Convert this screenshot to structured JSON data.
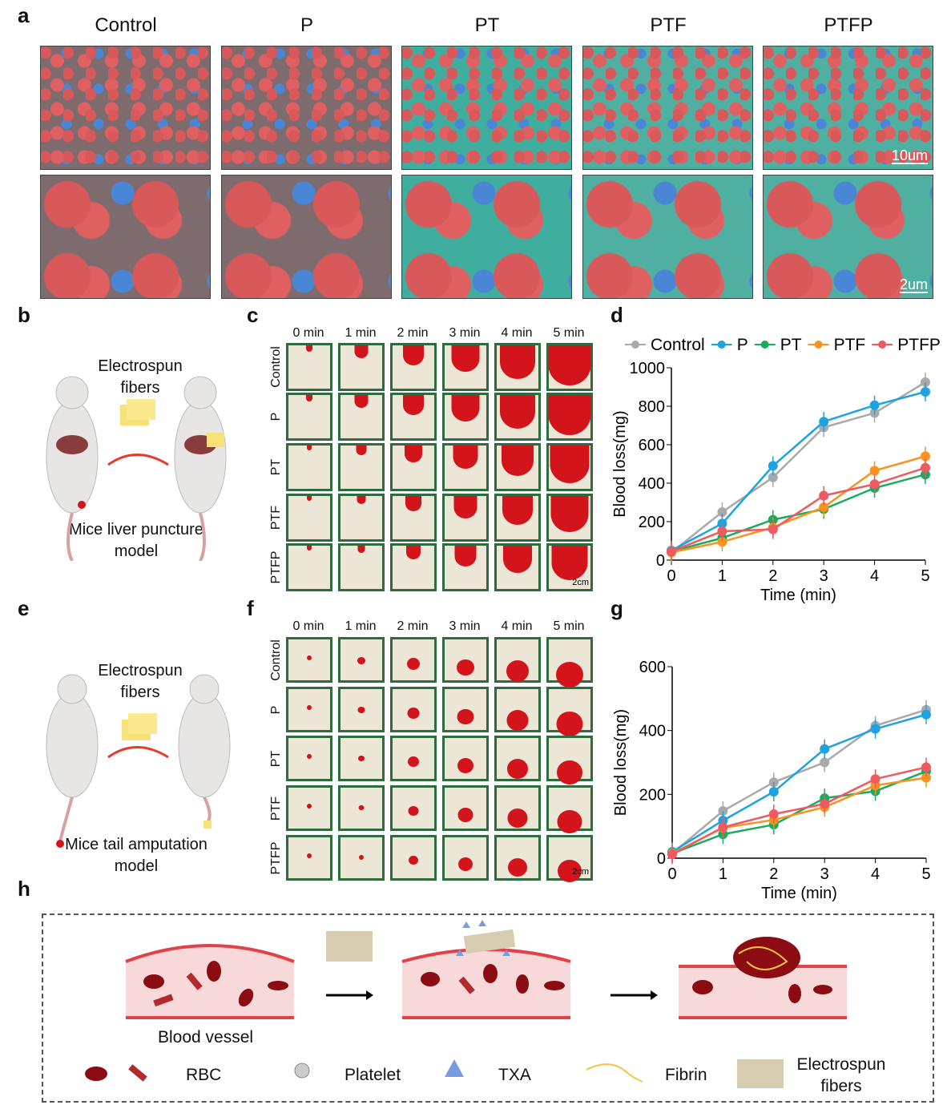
{
  "panel_labels": {
    "a": "a",
    "b": "b",
    "c": "c",
    "d": "d",
    "e": "e",
    "f": "f",
    "g": "g",
    "h": "h"
  },
  "panel_a": {
    "groups": [
      "Control",
      "P",
      "PT",
      "PTF",
      "PTFP"
    ],
    "scale_top": "10um",
    "scale_bottom": "2um"
  },
  "panel_b": {
    "fibers_label": "Electrospun fibers",
    "model_label": "Mice liver puncture model"
  },
  "panel_e": {
    "fibers_label": "Electrospun fibers",
    "model_label": "Mice tail amputation model"
  },
  "panel_c": {
    "times": [
      "0 min",
      "1 min",
      "2 min",
      "3 min",
      "4 min",
      "5 min"
    ],
    "rows": [
      "Control",
      "P",
      "PT",
      "PTF",
      "PTFP"
    ],
    "scale": "2cm"
  },
  "panel_f": {
    "times": [
      "0 min",
      "1 min",
      "2 min",
      "3 min",
      "4 min",
      "5 min"
    ],
    "rows": [
      "Control",
      "P",
      "PT",
      "PTF",
      "PTFP"
    ],
    "scale": "2cm"
  },
  "panel_h": {
    "vessel_label": "Blood vessel",
    "legend": {
      "rbc": "RBC",
      "platelet": "Platelet",
      "txa": "TXA",
      "fibrin": "Fibrin",
      "fibers": "Electrospun fibers"
    }
  },
  "chart_data": [
    {
      "type": "line",
      "panel": "d",
      "xlabel": "Time (min)",
      "ylabel": "Blood loss(mg)",
      "xlim": [
        0,
        5
      ],
      "ylim": [
        0,
        1000
      ],
      "xticks": [
        0,
        1,
        2,
        3,
        4,
        5
      ],
      "yticks": [
        0,
        200,
        400,
        600,
        800,
        1000
      ],
      "legend": "top",
      "x": [
        0,
        1,
        2,
        3,
        4,
        5
      ],
      "series": [
        {
          "name": "Control",
          "color": "#a9a9a9",
          "values": [
            40,
            250,
            430,
            690,
            765,
            925
          ]
        },
        {
          "name": "P",
          "color": "#1fa2e0",
          "values": [
            50,
            190,
            490,
            720,
            805,
            875
          ]
        },
        {
          "name": "PT",
          "color": "#1aab5f",
          "values": [
            45,
            115,
            210,
            265,
            375,
            445
          ]
        },
        {
          "name": "PTF",
          "color": "#f7931e",
          "values": [
            40,
            95,
            170,
            275,
            465,
            540
          ]
        },
        {
          "name": "PTFP",
          "color": "#ee5a5f",
          "values": [
            45,
            150,
            160,
            335,
            395,
            480
          ]
        }
      ]
    },
    {
      "type": "line",
      "panel": "g",
      "xlabel": "Time (min)",
      "ylabel": "Blood loss(mg)",
      "xlim": [
        0,
        5
      ],
      "ylim": [
        0,
        600
      ],
      "xticks": [
        0,
        1,
        2,
        3,
        4,
        5
      ],
      "yticks": [
        0,
        200,
        400,
        600
      ],
      "x": [
        0,
        1,
        2,
        3,
        4,
        5
      ],
      "series": [
        {
          "name": "Control",
          "color": "#a9a9a9",
          "values": [
            15,
            148,
            238,
            300,
            415,
            465
          ]
        },
        {
          "name": "P",
          "color": "#1fa2e0",
          "values": [
            20,
            118,
            208,
            342,
            405,
            450
          ]
        },
        {
          "name": "PT",
          "color": "#1aab5f",
          "values": [
            15,
            75,
            105,
            188,
            210,
            272
          ]
        },
        {
          "name": "PTF",
          "color": "#f7931e",
          "values": [
            15,
            95,
            120,
            160,
            228,
            252
          ]
        },
        {
          "name": "PTFP",
          "color": "#ee5a5f",
          "values": [
            12,
            97,
            138,
            170,
            248,
            285
          ]
        }
      ]
    }
  ]
}
